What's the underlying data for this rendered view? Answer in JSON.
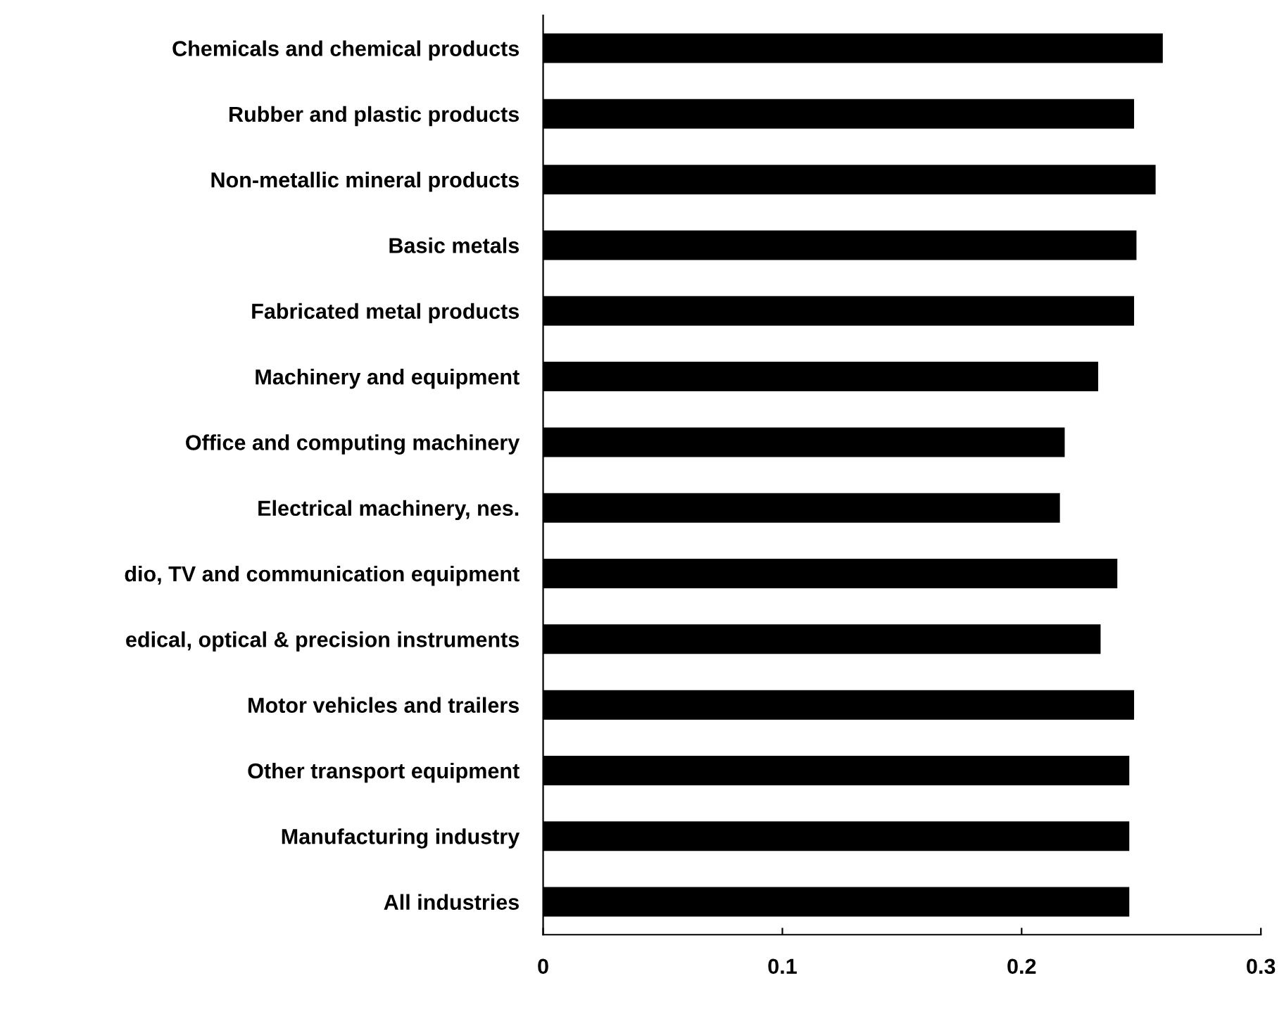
{
  "chart_data": {
    "type": "bar",
    "orientation": "horizontal",
    "categories": [
      "Chemicals and chemical products",
      "Rubber and plastic products",
      "Non-metallic mineral products",
      "Basic metals",
      "Fabricated metal products",
      "Machinery and equipment",
      "Office and computing machinery",
      "Electrical machinery, nes.",
      "dio, TV and communication equipment",
      "edical, optical & precision instruments",
      "Motor vehicles and trailers",
      "Other transport equipment",
      "Manufacturing industry",
      "All industries"
    ],
    "values": [
      0.259,
      0.247,
      0.256,
      0.248,
      0.247,
      0.232,
      0.218,
      0.216,
      0.24,
      0.233,
      0.247,
      0.245,
      0.245,
      0.245
    ],
    "color": "#000000",
    "xlim": [
      0,
      0.3
    ],
    "xticks": [
      0,
      0.1,
      0.2,
      0.3
    ],
    "grid": false,
    "legend": false
  }
}
